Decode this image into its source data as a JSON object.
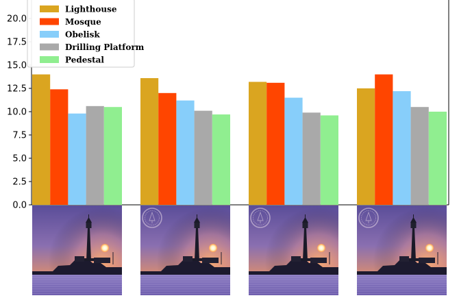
{
  "chart_data": {
    "type": "bar",
    "categories": [
      "",
      "",
      "",
      ""
    ],
    "series": [
      {
        "name": "Lighthouse",
        "color": "#DAA520",
        "values": [
          14.0,
          13.6,
          13.2,
          12.5
        ]
      },
      {
        "name": "Mosque",
        "color": "#FF4500",
        "values": [
          12.4,
          12.0,
          13.1,
          14.0
        ]
      },
      {
        "name": "Obelisk",
        "color": "#87CEFA",
        "values": [
          9.8,
          11.2,
          11.5,
          12.2
        ]
      },
      {
        "name": "Drilling Platform",
        "color": "#A9A9A9",
        "values": [
          10.6,
          10.1,
          9.9,
          10.5
        ]
      },
      {
        "name": "Pedestal",
        "color": "#90EE90",
        "values": [
          10.5,
          9.7,
          9.6,
          10.0
        ]
      }
    ],
    "ylim": [
      0,
      21
    ],
    "yticks": [
      "0.0",
      "2.5",
      "5.0",
      "7.5",
      "10.0",
      "12.5",
      "15.0",
      "17.5",
      "20.0"
    ],
    "grid": false,
    "legend_position": "top-left",
    "images": [
      {
        "scene": "lighthouse at sunset",
        "watermark": false
      },
      {
        "scene": "lighthouse at sunset",
        "watermark": true
      },
      {
        "scene": "lighthouse at sunset",
        "watermark": true
      },
      {
        "scene": "lighthouse at sunset",
        "watermark": true
      }
    ]
  }
}
